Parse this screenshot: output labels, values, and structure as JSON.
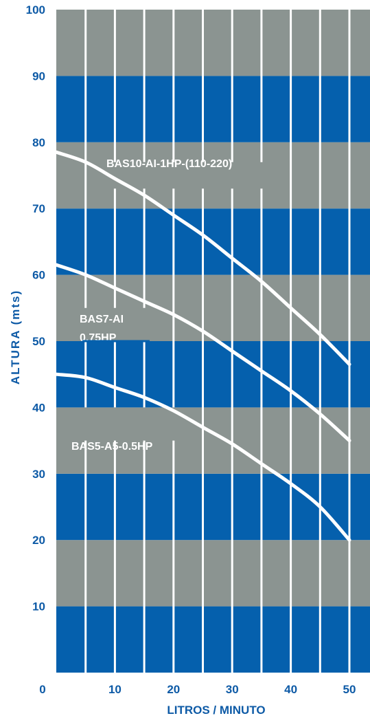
{
  "colors": {
    "band_blue": "#0560ad",
    "band_gray": "#8b9491",
    "text_blue": "#0d5aa6",
    "curve": "#ffffff",
    "gridline": "#ffffff"
  },
  "chart_data": {
    "type": "line",
    "title": "",
    "xlabel": "LITROS / MINUTO",
    "ylabel": "ALTURA (mts)",
    "xlim": [
      0,
      50
    ],
    "ylim": [
      0,
      100
    ],
    "x_ticks": [
      0,
      10,
      20,
      30,
      40,
      50
    ],
    "y_ticks": [
      10,
      20,
      30,
      40,
      50,
      60,
      70,
      80,
      90,
      100
    ],
    "x_tick_labels": [
      "0",
      "10",
      "20",
      "30",
      "40",
      "50"
    ],
    "y_tick_labels": [
      "10",
      "20",
      "30",
      "40",
      "50",
      "60",
      "70",
      "80",
      "90",
      "100"
    ],
    "vertical_gridlines": [
      5,
      10,
      15,
      20,
      25,
      30,
      35,
      40,
      45,
      50
    ],
    "background_bands": "alternating blue/gray every 10 m",
    "series": [
      {
        "name": "BAS10-AI-1HP-(110-220)",
        "x": [
          0,
          5,
          10,
          15,
          20,
          25,
          30,
          35,
          40,
          45,
          50
        ],
        "y": [
          78.5,
          77,
          74.5,
          72,
          69,
          66,
          62.5,
          59,
          55,
          51,
          46.5
        ]
      },
      {
        "name": "BAS7-AI 0.75HP",
        "x": [
          0,
          5,
          10,
          15,
          20,
          25,
          30,
          35,
          40,
          45,
          50
        ],
        "y": [
          61.5,
          60,
          58,
          56,
          54,
          51.5,
          48.5,
          45.5,
          42.5,
          39,
          35
        ]
      },
      {
        "name": "BAS5-A5-0.5HP",
        "x": [
          0,
          5,
          10,
          15,
          20,
          25,
          30,
          35,
          40,
          45,
          50
        ],
        "y": [
          45,
          44.5,
          43,
          41.5,
          39.5,
          37,
          34.5,
          31.5,
          28.5,
          25,
          20
        ]
      }
    ],
    "series_labels": [
      {
        "line1": "BAS10-AI-1HP-(110-220)",
        "line2": ""
      },
      {
        "line1": "BAS7-AI",
        "line2": "0.75HP"
      },
      {
        "line1": "BAS5-A5-0.5HP",
        "line2": ""
      }
    ]
  }
}
